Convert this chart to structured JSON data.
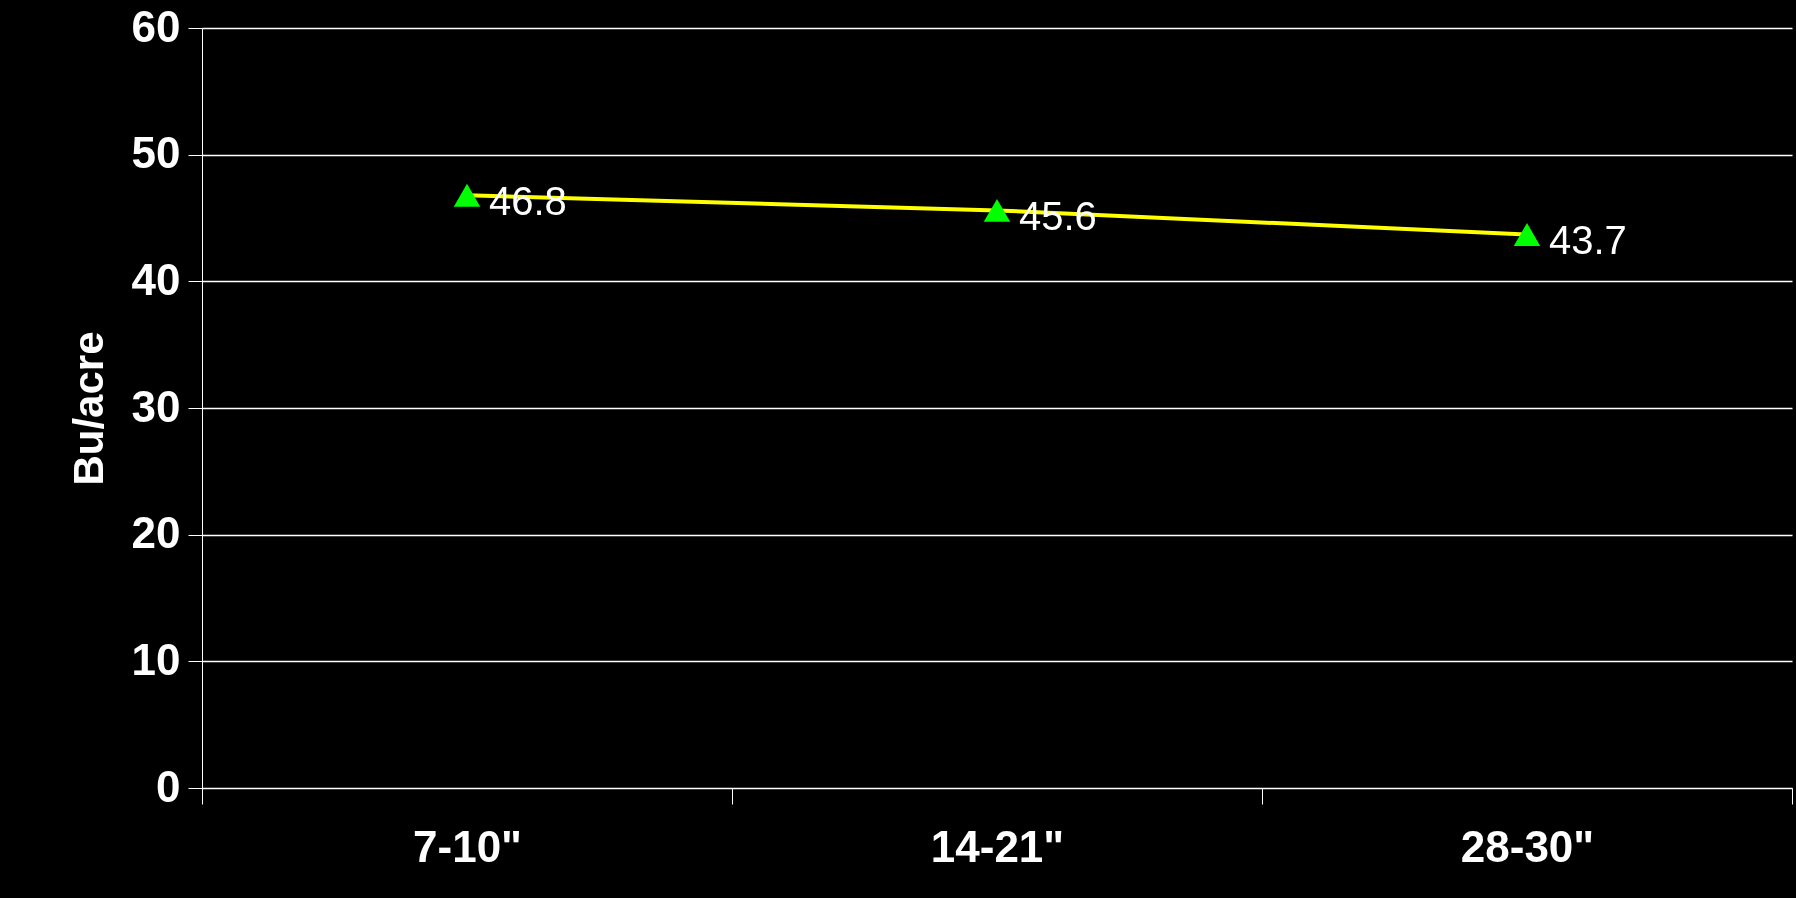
{
  "chart_data": {
    "type": "line",
    "ylabel": "Bu/acre",
    "categories": [
      "7-10\"",
      "14-21\"",
      "28-30\""
    ],
    "series": [
      {
        "color": "#ffff00",
        "colors": [
          "#00ff00",
          "#00ff00",
          "#00ff00"
        ],
        "values": [
          46.8,
          45.6,
          43.7
        ]
      }
    ],
    "ylim": [
      0,
      60
    ],
    "yticks": [
      0,
      10,
      20,
      30,
      40,
      50,
      60
    ],
    "grid": "y",
    "marker": "triangle",
    "data_labels": true
  }
}
